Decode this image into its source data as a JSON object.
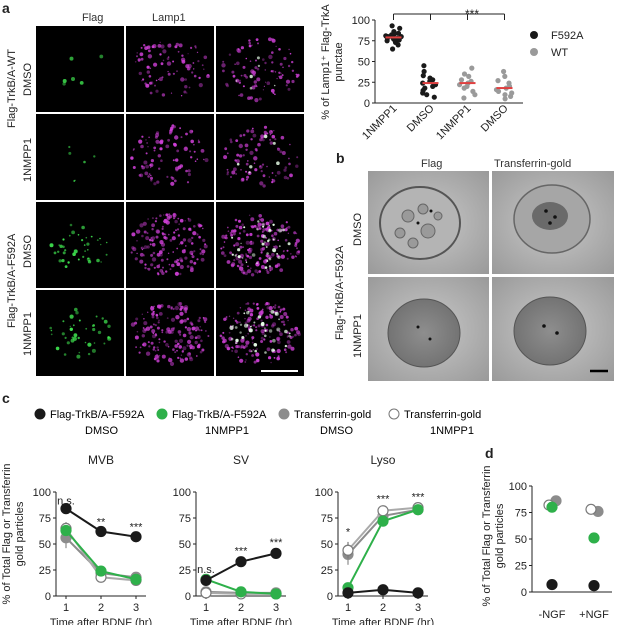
{
  "panels": {
    "a": {
      "label": "a",
      "col_titles": [
        "Flag",
        "Lamp1"
      ],
      "group_labels": [
        "Flag-TrkB/A-WT",
        "Flag-TrkB/A-F592A"
      ],
      "row_labels": [
        "DMSO",
        "1NMPP1",
        "DMSO",
        "1NMPP1"
      ]
    },
    "b": {
      "label": "b",
      "col_titles": [
        "Flag",
        "Transferrin-gold"
      ],
      "group_label": "Flag-TrkB/A-F592A",
      "row_labels": [
        "DMSO",
        "1NMPP1"
      ]
    },
    "c": {
      "label": "c",
      "legend": [
        {
          "name": "Flag-TrkB/A-F592A",
          "sub": "DMSO",
          "color": "#1a1a1a",
          "filled": true
        },
        {
          "name": "Flag-TrkB/A-F592A",
          "sub": "1NMPP1",
          "color": "#2eb04a",
          "filled": true
        },
        {
          "name": "Transferrin-gold",
          "sub": "DMSO",
          "color": "#8c8c8c",
          "filled": true
        },
        {
          "name": "Transferrin-gold",
          "sub": "1NMPP1",
          "color": "#ffffff",
          "filled": false
        }
      ],
      "ylabel_line1": "% of Total Flag or Transferrin",
      "ylabel_line2": "gold particles"
    },
    "d": {
      "label": "d",
      "ylabel_line1": "% of Total Flag or Transferrin",
      "ylabel_line2": "gold particles"
    }
  },
  "chart_data": [
    {
      "type": "scatter",
      "panel": "a-right",
      "ylabel_line1": "% of Lamp1⁺ Flag-TrkA",
      "ylabel_line2": "punctae",
      "categories": [
        "1NMPP1",
        "DMSO",
        "1NMPP1",
        "DMSO"
      ],
      "ylim": [
        0,
        100
      ],
      "yticks": [
        0,
        25,
        50,
        75,
        100
      ],
      "significance": "***",
      "legend": [
        {
          "name": "F592A",
          "color": "#1a1a1a"
        },
        {
          "name": "WT",
          "color": "#9a9a9a"
        }
      ],
      "series": [
        {
          "category": "1NMPP1",
          "group": "F592A",
          "mean": 79,
          "values": [
            93,
            90,
            86,
            84,
            83,
            82,
            81,
            80,
            80,
            79,
            78,
            78,
            77,
            76,
            75,
            73,
            70,
            65
          ]
        },
        {
          "category": "DMSO",
          "group": "F592A",
          "mean": 24,
          "values": [
            45,
            38,
            33,
            30,
            28,
            26,
            24,
            22,
            20,
            18,
            15,
            12,
            10,
            7
          ]
        },
        {
          "category": "1NMPP1",
          "group": "WT",
          "mean": 24,
          "values": [
            42,
            35,
            32,
            28,
            26,
            24,
            22,
            20,
            18,
            14,
            10,
            6
          ]
        },
        {
          "category": "DMSO",
          "group": "WT",
          "mean": 18,
          "values": [
            38,
            32,
            27,
            24,
            20,
            18,
            16,
            14,
            12,
            10,
            8,
            5
          ]
        }
      ]
    },
    {
      "type": "line",
      "panel": "c-MVB",
      "title": "MVB",
      "xlabel": "Time after BDNF (hr)",
      "x": [
        1,
        2,
        3
      ],
      "ylim": [
        0,
        100
      ],
      "yticks": [
        0,
        25,
        50,
        75,
        100
      ],
      "annotations": [
        {
          "x": 1,
          "y": 88,
          "text": "n.s."
        },
        {
          "x": 2,
          "y": 68,
          "text": "**"
        },
        {
          "x": 3,
          "y": 63,
          "text": "***"
        }
      ],
      "series": [
        {
          "name": "Flag-TrkB/A-F592A DMSO",
          "values": [
            84,
            62,
            57
          ],
          "err": [
            3,
            2,
            2
          ]
        },
        {
          "name": "Flag-TrkB/A-F592A 1NMPP1",
          "values": [
            63,
            24,
            16
          ],
          "err": [
            5,
            4,
            3
          ]
        },
        {
          "name": "Transferrin-gold DMSO",
          "values": [
            56,
            22,
            18
          ],
          "err": [
            10,
            4,
            3
          ]
        },
        {
          "name": "Transferrin-gold 1NMPP1",
          "values": [
            65,
            18,
            15
          ],
          "err": [
            6,
            3,
            3
          ]
        }
      ]
    },
    {
      "type": "line",
      "panel": "c-SV",
      "title": "SV",
      "xlabel": "Time after BDNF (hr)",
      "x": [
        1,
        2,
        3
      ],
      "ylim": [
        0,
        100
      ],
      "yticks": [
        0,
        25,
        50,
        75,
        100
      ],
      "annotations": [
        {
          "x": 1,
          "y": 22,
          "text": "n.s."
        },
        {
          "x": 2,
          "y": 40,
          "text": "***"
        },
        {
          "x": 3,
          "y": 48,
          "text": "***"
        }
      ],
      "series": [
        {
          "name": "Flag-TrkB/A-F592A DMSO",
          "values": [
            15,
            33,
            41
          ],
          "err": [
            2,
            3,
            4
          ]
        },
        {
          "name": "Flag-TrkB/A-F592A 1NMPP1",
          "values": [
            16,
            4,
            2
          ],
          "err": [
            3,
            2,
            1
          ]
        },
        {
          "name": "Transferrin-gold DMSO",
          "values": [
            4,
            3,
            3
          ],
          "err": [
            2,
            1,
            1
          ]
        },
        {
          "name": "Transferrin-gold 1NMPP1",
          "values": [
            3,
            2,
            2
          ],
          "err": [
            1,
            1,
            1
          ]
        }
      ]
    },
    {
      "type": "line",
      "panel": "c-Lyso",
      "title": "Lyso",
      "xlabel": "Time after BDNF (hr)",
      "x": [
        1,
        2,
        3
      ],
      "ylim": [
        0,
        100
      ],
      "yticks": [
        0,
        25,
        50,
        75,
        100
      ],
      "annotations": [
        {
          "x": 1,
          "y": 58,
          "text": "*"
        },
        {
          "x": 2,
          "y": 90,
          "text": "***"
        },
        {
          "x": 3,
          "y": 92,
          "text": "***"
        }
      ],
      "series": [
        {
          "name": "Flag-TrkB/A-F592A DMSO",
          "values": [
            3,
            6,
            3
          ],
          "err": [
            1,
            1,
            1
          ]
        },
        {
          "name": "Flag-TrkB/A-F592A 1NMPP1",
          "values": [
            8,
            72,
            83
          ],
          "err": [
            3,
            4,
            4
          ]
        },
        {
          "name": "Transferrin-gold DMSO",
          "values": [
            40,
            77,
            83
          ],
          "err": [
            10,
            4,
            3
          ]
        },
        {
          "name": "Transferrin-gold 1NMPP1",
          "values": [
            44,
            82,
            85
          ],
          "err": [
            8,
            3,
            3
          ]
        }
      ]
    },
    {
      "type": "scatter",
      "panel": "d",
      "categories": [
        "-NGF",
        "+NGF"
      ],
      "ylim": [
        0,
        100
      ],
      "yticks": [
        0,
        25,
        50,
        75,
        100
      ],
      "series": [
        {
          "name": "Flag-TrkB/A-F592A DMSO",
          "values": [
            7,
            6
          ],
          "err": [
            1,
            1
          ]
        },
        {
          "name": "Flag-TrkB/A-F592A 1NMPP1",
          "values": [
            80,
            51
          ],
          "err": [
            4,
            3
          ]
        },
        {
          "name": "Transferrin-gold DMSO",
          "values": [
            86,
            76
          ],
          "err": [
            2,
            2
          ]
        },
        {
          "name": "Transferrin-gold 1NMPP1",
          "values": [
            82,
            78
          ],
          "err": [
            2,
            2
          ]
        }
      ]
    }
  ]
}
